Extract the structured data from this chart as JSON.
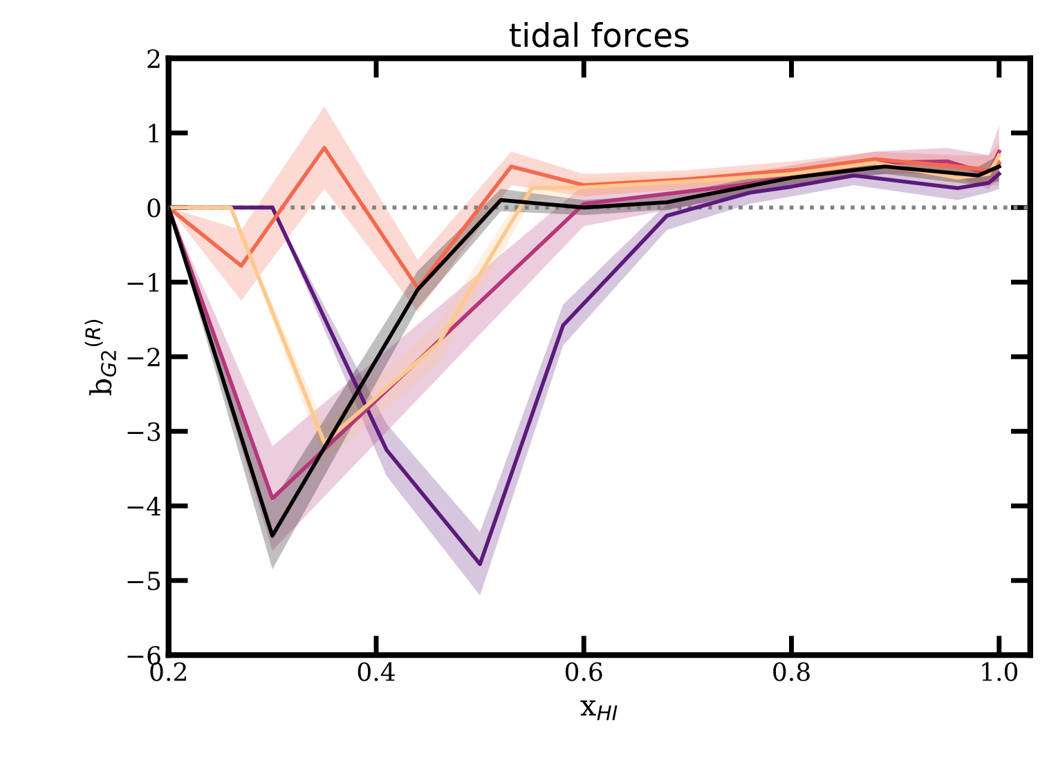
{
  "chart_data": {
    "type": "line",
    "title": "tidal forces",
    "xlabel": "x$_{HI}$",
    "ylabel": "b$_{G2}$$^{(R)}$",
    "xlim": [
      0.2,
      1.03
    ],
    "ylim": [
      -6,
      2
    ],
    "xticks": [
      0.2,
      0.4,
      0.6,
      0.8,
      {
        "value": 1,
        "label": "1.0"
      }
    ],
    "yticks": [
      {
        "value": -6,
        "label": "−6"
      },
      {
        "value": -5,
        "label": "−5"
      },
      {
        "value": -4,
        "label": "−4"
      },
      {
        "value": -3,
        "label": "−3"
      },
      {
        "value": -2,
        "label": "−2"
      },
      {
        "value": -1,
        "label": "−1"
      },
      0,
      1,
      2
    ],
    "grid": false,
    "legend": false,
    "line_style": "solid",
    "marker": "none",
    "ref_lines": [
      {
        "axis": "y",
        "value": 0,
        "color": "#808080",
        "line_style": "dotted"
      }
    ],
    "series": [
      {
        "color": "#5c1a7b",
        "x": [
          0.2,
          0.3,
          0.41,
          0.5,
          0.58,
          0.68,
          0.76,
          0.8,
          0.86,
          0.96,
          0.99,
          1.0
        ],
        "values": [
          0,
          0,
          -3.25,
          -4.78,
          -1.58,
          -0.11,
          0.2,
          0.28,
          0.43,
          0.26,
          0.33,
          0.45
        ],
        "lower": [
          0,
          0,
          -3.6,
          -5.2,
          -1.85,
          -0.3,
          0.05,
          0.15,
          0.3,
          0.1,
          0.2,
          0.25
        ],
        "upper": [
          0,
          0,
          -2.9,
          -4.35,
          -1.3,
          0.05,
          0.35,
          0.42,
          0.55,
          0.42,
          0.5,
          0.6
        ]
      },
      {
        "color": "#b5367a",
        "x": [
          0.2,
          0.3,
          0.6,
          0.75,
          0.88,
          0.95,
          0.99,
          1.0
        ],
        "values": [
          0,
          -3.9,
          0.05,
          0.3,
          0.6,
          0.62,
          0.45,
          0.75
        ],
        "lower": [
          0,
          -4.6,
          -0.25,
          0.15,
          0.45,
          0.45,
          0.25,
          0.4
        ],
        "upper": [
          0,
          -3.2,
          0.3,
          0.45,
          0.75,
          0.8,
          0.7,
          1.1
        ]
      },
      {
        "color": "#f4694f",
        "x": [
          0.2,
          0.27,
          0.35,
          0.44,
          0.53,
          0.6,
          0.7,
          0.8,
          0.88,
          0.96,
          0.99,
          1.0
        ],
        "values": [
          0,
          -0.78,
          0.8,
          -1.08,
          0.55,
          0.3,
          0.38,
          0.5,
          0.65,
          0.55,
          0.5,
          0.6
        ],
        "lower": [
          0,
          -1.25,
          0.25,
          -1.4,
          0.3,
          0.15,
          0.25,
          0.38,
          0.52,
          0.4,
          0.3,
          0.3
        ],
        "upper": [
          0,
          -0.3,
          1.35,
          -0.7,
          0.75,
          0.45,
          0.5,
          0.62,
          0.75,
          0.7,
          0.7,
          0.85
        ]
      },
      {
        "color": "#fec98d",
        "x": [
          0.2,
          0.26,
          0.35,
          0.46,
          0.55,
          0.6,
          0.7,
          0.8,
          0.88,
          0.96,
          0.99,
          1.0
        ],
        "values": [
          0,
          0,
          -3.15,
          -1.82,
          0.26,
          0.27,
          0.35,
          0.45,
          0.6,
          0.4,
          0.45,
          0.7
        ],
        "lower": [
          0,
          0,
          -3.4,
          -2.1,
          0.1,
          0.15,
          0.25,
          0.35,
          0.5,
          0.3,
          0.3,
          0.5
        ],
        "upper": [
          0,
          0,
          -2.9,
          -1.55,
          0.4,
          0.4,
          0.45,
          0.55,
          0.7,
          0.5,
          0.6,
          0.9
        ]
      },
      {
        "color": "#000000",
        "x": [
          0.2,
          0.3,
          0.44,
          0.52,
          0.6,
          0.68,
          0.8,
          0.89,
          0.98,
          1.0
        ],
        "values": [
          0,
          -4.4,
          -1.1,
          0.1,
          0.0,
          0.07,
          0.4,
          0.55,
          0.43,
          0.55
        ],
        "lower": [
          0,
          -4.85,
          -1.35,
          -0.05,
          -0.1,
          -0.03,
          0.3,
          0.45,
          0.3,
          0.35
        ],
        "upper": [
          0,
          -3.95,
          -0.85,
          0.25,
          0.1,
          0.17,
          0.5,
          0.65,
          0.55,
          0.7
        ]
      }
    ]
  }
}
